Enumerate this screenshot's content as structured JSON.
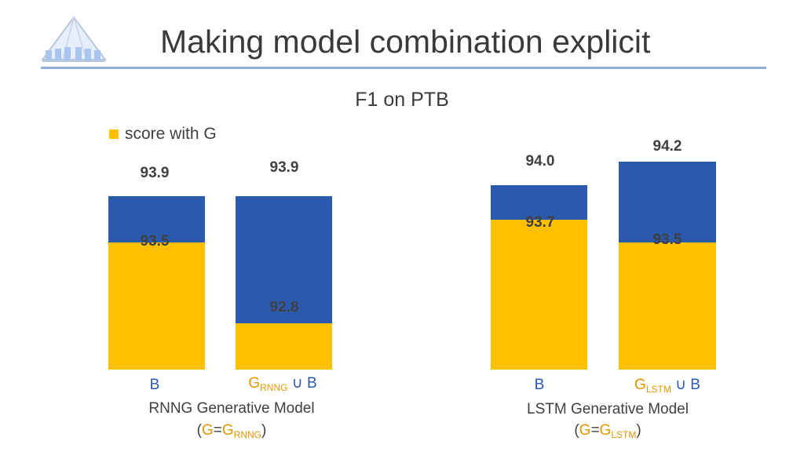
{
  "slide": {
    "title": "Making model combination explicit",
    "logo_icon": "tent-pavilion-logo"
  },
  "chart_data": {
    "type": "bar",
    "title": "F1 on PTB",
    "legend": "score with G",
    "legend_color": "#ffc000",
    "ylim": [
      92.4,
      94.35
    ],
    "bars": [
      {
        "label_main": "B",
        "label_sub": "",
        "label_union": "",
        "total": "93.9",
        "base": "93.5",
        "total_value": 93.9,
        "base_value": 93.5
      },
      {
        "label_main": "G",
        "label_sub": "RNNG",
        "label_union": " ∪ B",
        "total": "93.9",
        "base": "92.8",
        "total_value": 93.9,
        "base_value": 92.8
      },
      {
        "label_main": "B",
        "label_sub": "",
        "label_union": "",
        "total": "94.0",
        "base": "93.7",
        "total_value": 94.0,
        "base_value": 93.7
      },
      {
        "label_main": "G",
        "label_sub": "LSTM",
        "label_union": " ∪ B",
        "total": "94.2",
        "base": "93.5",
        "total_value": 94.2,
        "base_value": 93.5
      }
    ],
    "groups": [
      {
        "name": "RNNG Generative Model",
        "paren_open": "(",
        "eq_g": "G",
        "eq": "=",
        "eq_rhs": "G",
        "eq_sub": "RNNG",
        "paren_close": ")"
      },
      {
        "name": "LSTM Generative Model",
        "paren_open": "(",
        "eq_g": "G",
        "eq": "=",
        "eq_rhs": "G",
        "eq_sub": "LSTM",
        "paren_close": ")"
      }
    ],
    "colors": {
      "gain": "#2a5aad",
      "score_with_g": "#ffc000"
    }
  }
}
